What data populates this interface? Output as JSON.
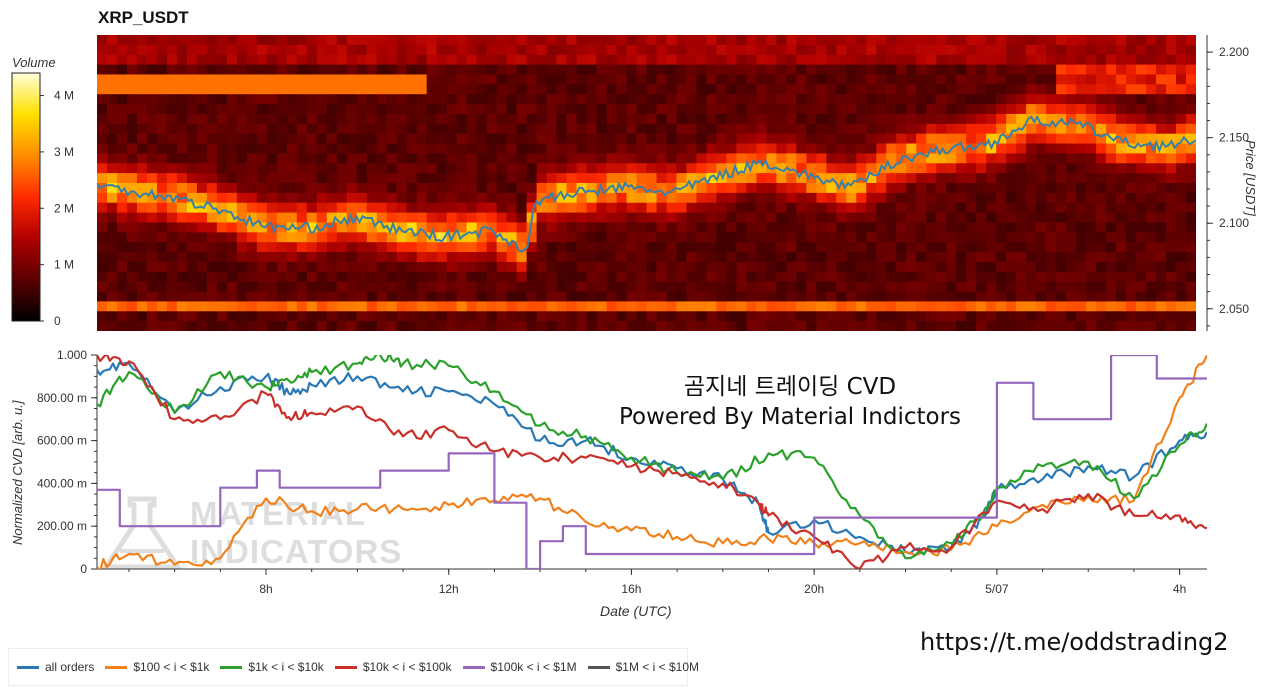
{
  "chart_title": "XRP_USDT",
  "overlay_text": {
    "line1": "곰지네 트레이딩 CVD",
    "line2": "Powered By Material Indictors"
  },
  "telegram_link": "https://t.me/oddstrading2",
  "watermark": {
    "line1": "MATERIAL",
    "line2": "INDICATORS"
  },
  "chart_data": [
    {
      "type": "heatmap",
      "title": "XRP_USDT",
      "ylabel": "Price [USDT]",
      "yticks": [
        "2.200",
        "2.150",
        "2.100",
        "2.050"
      ],
      "ytick_values": [
        2.2,
        2.15,
        2.1,
        2.05
      ],
      "ylim": [
        2.037,
        2.21
      ],
      "colorbar": {
        "title": "Volume",
        "ticks": [
          "4 M",
          "3 M",
          "2 M",
          "1 M",
          "0"
        ],
        "tick_values": [
          4,
          3,
          2,
          1,
          0
        ],
        "range": [
          0,
          4.4
        ],
        "colors": [
          "#000000",
          "#5a0000",
          "#b00000",
          "#ff2a00",
          "#ff8c00",
          "#ffe000",
          "#ffffd8"
        ]
      },
      "price_line": {
        "color": "#3a7fa8",
        "x": [
          4.3,
          5,
          6,
          7,
          8,
          9,
          10,
          11,
          12,
          13,
          13.8,
          14,
          15,
          16,
          17,
          18,
          19,
          20,
          21,
          22,
          23,
          24,
          25,
          26,
          27,
          28,
          28.6
        ],
        "y": [
          2.122,
          2.119,
          2.115,
          2.108,
          2.098,
          2.097,
          2.103,
          2.096,
          2.092,
          2.096,
          2.084,
          2.113,
          2.118,
          2.121,
          2.118,
          2.127,
          2.136,
          2.128,
          2.121,
          2.137,
          2.143,
          2.146,
          2.16,
          2.158,
          2.147,
          2.145,
          2.149
        ]
      }
    },
    {
      "type": "line",
      "xlabel": "Date (UTC)",
      "ylabel": "Normalized CVD [arb. u.]",
      "xlim": [
        4.3,
        28.6
      ],
      "ylim": [
        0,
        1
      ],
      "xticks": [
        "8h",
        "12h",
        "16h",
        "20h",
        "5/07",
        "4h"
      ],
      "xtick_values": [
        8,
        12,
        16,
        20,
        24,
        28
      ],
      "yticks": [
        "1.000",
        "800.00 m",
        "600.00 m",
        "400.00 m",
        "200.00 m",
        "0"
      ],
      "ytick_values": [
        1,
        0.8,
        0.6,
        0.4,
        0.2,
        0
      ],
      "series": [
        {
          "name": "all orders",
          "color": "#2a78b5",
          "x": [
            4.3,
            5,
            6,
            7,
            8,
            8.5,
            9,
            10,
            11,
            12,
            13,
            14,
            15,
            16,
            17,
            18,
            18.8,
            19,
            20,
            21,
            22,
            23,
            23.7,
            24,
            25,
            26,
            27,
            28,
            28.6
          ],
          "y": [
            0.93,
            0.96,
            0.73,
            0.85,
            0.9,
            0.82,
            0.86,
            0.9,
            0.83,
            0.83,
            0.77,
            0.6,
            0.6,
            0.52,
            0.47,
            0.42,
            0.3,
            0.17,
            0.23,
            0.15,
            0.08,
            0.1,
            0.24,
            0.37,
            0.42,
            0.48,
            0.43,
            0.6,
            0.64
          ]
        },
        {
          "name": "$100 < i < $1k",
          "color": "#f0821e",
          "x": [
            4.3,
            5,
            6,
            7,
            8,
            9,
            10,
            11,
            12,
            13,
            14,
            15,
            16,
            17,
            18,
            19,
            20,
            21,
            22,
            23,
            24,
            25,
            26,
            27,
            28,
            28.6
          ],
          "y": [
            0.01,
            0.07,
            0.02,
            0.05,
            0.33,
            0.27,
            0.28,
            0.28,
            0.3,
            0.32,
            0.33,
            0.22,
            0.18,
            0.15,
            0.12,
            0.14,
            0.12,
            0.12,
            0.08,
            0.09,
            0.2,
            0.3,
            0.34,
            0.32,
            0.8,
            1.0
          ]
        },
        {
          "name": "$1k < i < $10k",
          "color": "#2ca02c",
          "x": [
            4.3,
            5,
            6,
            7,
            8,
            8.5,
            9,
            10,
            10.5,
            11,
            12,
            13,
            14,
            15,
            16,
            17,
            18,
            19,
            20,
            21,
            22,
            23,
            23.7,
            24,
            25,
            26,
            27,
            28,
            28.6
          ],
          "y": [
            0.77,
            0.92,
            0.73,
            0.92,
            0.85,
            0.88,
            0.92,
            0.96,
            1.0,
            0.96,
            0.95,
            0.83,
            0.67,
            0.62,
            0.52,
            0.45,
            0.42,
            0.54,
            0.52,
            0.25,
            0.05,
            0.12,
            0.25,
            0.38,
            0.48,
            0.5,
            0.33,
            0.58,
            0.68
          ]
        },
        {
          "name": "$10k < i < $100k",
          "color": "#c8302a",
          "x": [
            4.3,
            5,
            6,
            7,
            8,
            8.5,
            9,
            10,
            11,
            12,
            13,
            14,
            15,
            16,
            17,
            18,
            18.8,
            19,
            20,
            21,
            22,
            23,
            24,
            25,
            26,
            27,
            28,
            28.6
          ],
          "y": [
            1.0,
            0.97,
            0.7,
            0.7,
            0.82,
            0.71,
            0.73,
            0.76,
            0.62,
            0.65,
            0.55,
            0.52,
            0.52,
            0.48,
            0.45,
            0.4,
            0.3,
            0.25,
            0.15,
            0.0,
            0.1,
            0.1,
            0.32,
            0.28,
            0.35,
            0.25,
            0.25,
            0.19
          ]
        },
        {
          "name": "$100k < i < $1M",
          "color": "#9467bd",
          "step": true,
          "x": [
            4.3,
            4.8,
            5.5,
            6.5,
            7,
            7.5,
            7.8,
            8.3,
            9,
            10.5,
            12,
            13,
            13.7,
            14,
            14.5,
            15,
            17,
            19.5,
            20,
            23.5,
            24,
            24.8,
            25,
            25.6,
            26.5,
            27.5,
            28.6
          ],
          "y": [
            0.37,
            0.2,
            0.2,
            0.2,
            0.38,
            0.38,
            0.46,
            0.38,
            0.38,
            0.46,
            0.54,
            0.31,
            0.0,
            0.13,
            0.2,
            0.07,
            0.07,
            0.07,
            0.24,
            0.24,
            0.87,
            0.7,
            0.7,
            0.7,
            1.0,
            0.89,
            0.89
          ]
        },
        {
          "name": "$1M < i < $10M",
          "color": "#555555",
          "x": [],
          "y": []
        }
      ]
    }
  ]
}
